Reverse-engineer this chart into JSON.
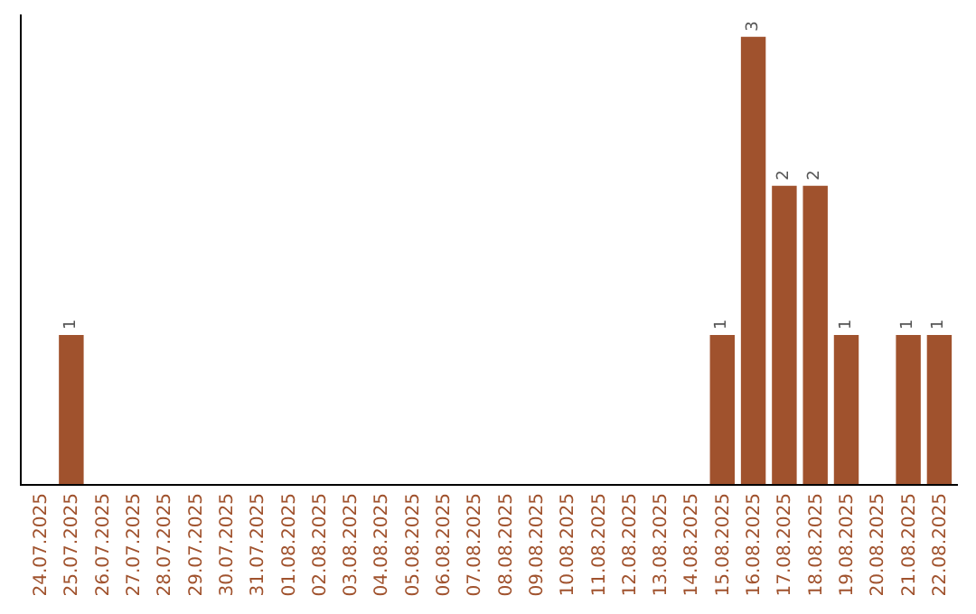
{
  "chart_data": {
    "type": "bar",
    "categories": [
      "24.07.2025",
      "25.07.2025",
      "26.07.2025",
      "27.07.2025",
      "28.07.2025",
      "29.07.2025",
      "30.07.2025",
      "31.07.2025",
      "01.08.2025",
      "02.08.2025",
      "03.08.2025",
      "04.08.2025",
      "05.08.2025",
      "06.08.2025",
      "07.08.2025",
      "08.08.2025",
      "09.08.2025",
      "10.08.2025",
      "11.08.2025",
      "12.08.2025",
      "13.08.2025",
      "14.08.2025",
      "15.08.2025",
      "16.08.2025",
      "17.08.2025",
      "18.08.2025",
      "19.08.2025",
      "20.08.2025",
      "21.08.2025",
      "22.08.2025"
    ],
    "values": [
      0,
      1,
      0,
      0,
      0,
      0,
      0,
      0,
      0,
      0,
      0,
      0,
      0,
      0,
      0,
      0,
      0,
      0,
      0,
      0,
      0,
      0,
      1,
      3,
      2,
      2,
      1,
      0,
      1,
      1
    ],
    "color": "#a0522d",
    "value_labels": [
      null,
      "1",
      null,
      null,
      null,
      null,
      null,
      null,
      null,
      null,
      null,
      null,
      null,
      null,
      null,
      null,
      null,
      null,
      null,
      null,
      null,
      null,
      "1",
      "3",
      "2",
      "2",
      "1",
      null,
      "1",
      "1"
    ],
    "tick_labels": "x"
  }
}
